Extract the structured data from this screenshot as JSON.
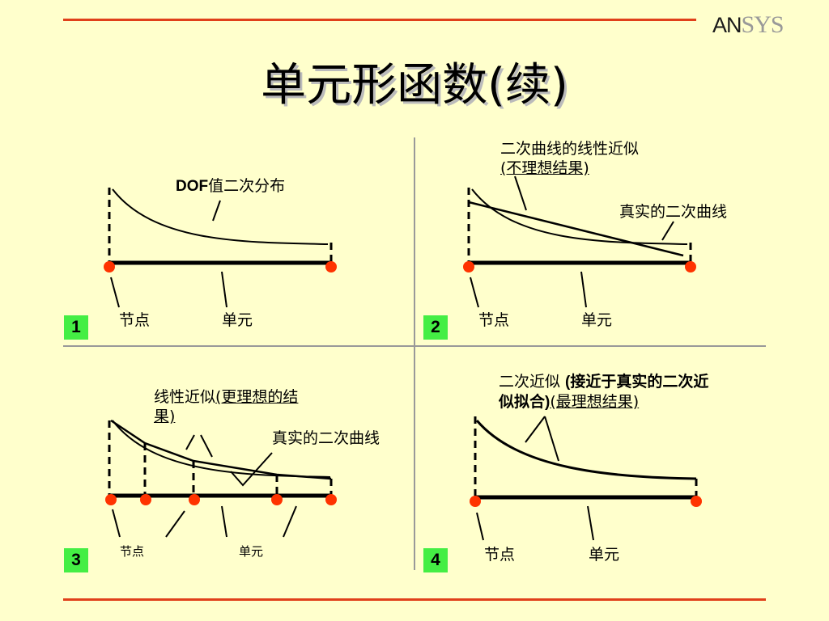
{
  "logo": {
    "an": "AN",
    "sys": "SYS"
  },
  "title": "单元形函数(续)",
  "panel1": {
    "number": "1",
    "curve_label_bold": "DOF",
    "curve_label_rest": "值二次分布",
    "node_label": "节点",
    "element_label": "单元"
  },
  "panel2": {
    "number": "2",
    "approx_label_a": "二次曲线的线性近似",
    "approx_label_b": "(不理想结果)",
    "true_curve_label": "真实的二次曲线",
    "node_label": "节点",
    "element_label": "单元"
  },
  "panel3": {
    "number": "3",
    "approx_label_a": "线性近似",
    "approx_label_b": "(更理想的结果)",
    "true_curve_label": "真实的二次曲线",
    "node_label": "节点",
    "element_label": "单元"
  },
  "panel4": {
    "number": "4",
    "approx_label_a": "二次近似 ",
    "approx_label_b": "(接近于真实的二次近似拟合)",
    "approx_label_c": "(最理想结果)",
    "node_label": "节点",
    "element_label": "单元"
  },
  "colors": {
    "background": "#ffffcc",
    "accent_rule": "#e0401a",
    "node": "#ff3300",
    "badge": "#44ee44"
  }
}
